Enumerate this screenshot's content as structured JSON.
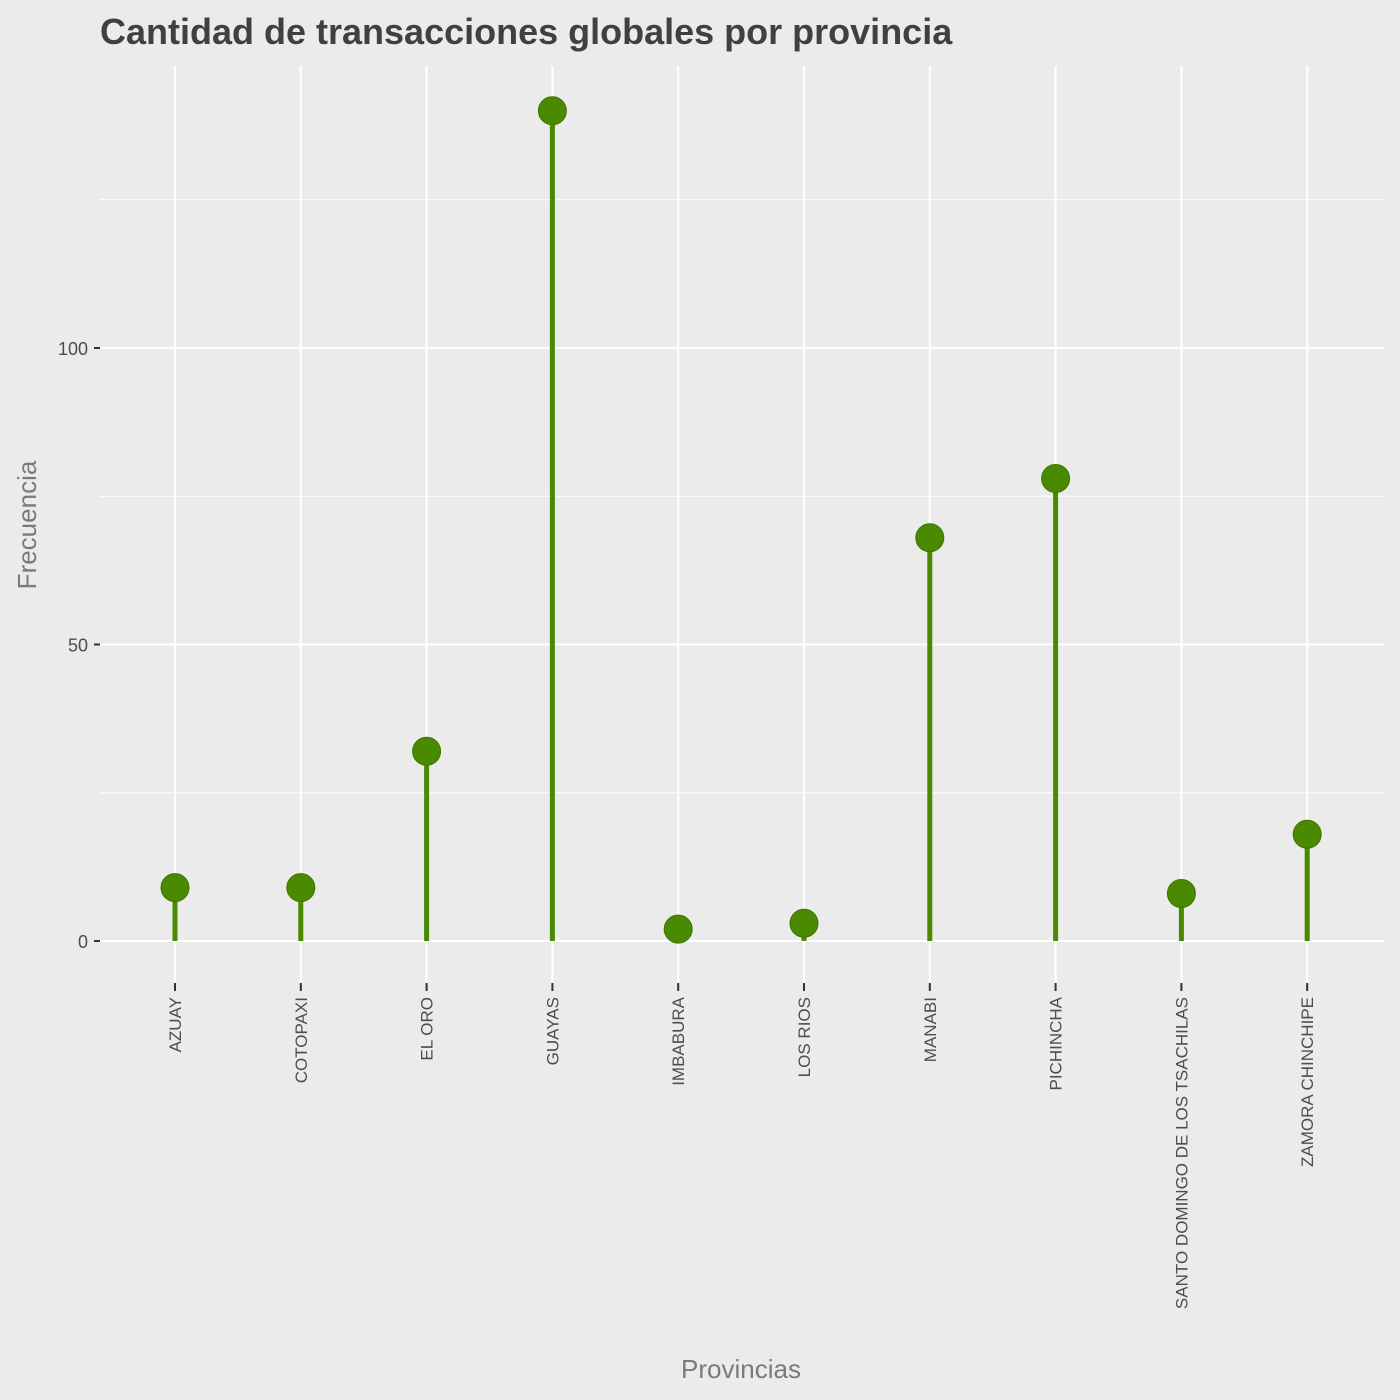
{
  "chart_data": {
    "type": "lollipop",
    "title": "Cantidad de transacciones globales por provincia",
    "xlabel": "Provincias",
    "ylabel": "Frecuencia",
    "categories": [
      "AZUAY",
      "COTOPAXI",
      "EL ORO",
      "GUAYAS",
      "IMBABURA",
      "LOS RIOS",
      "MANABI",
      "PICHINCHA",
      "SANTO DOMINGO DE LOS TSACHILAS",
      "ZAMORA CHINCHIPE"
    ],
    "values": [
      9,
      9,
      32,
      140,
      2,
      3,
      68,
      78,
      8,
      18
    ],
    "y_ticks": [
      0,
      50,
      100
    ],
    "ylim": [
      -7.5,
      147
    ],
    "grid": true,
    "color": "#4a8a00",
    "background": "#ebebeb",
    "grid_color": "#ffffff"
  }
}
